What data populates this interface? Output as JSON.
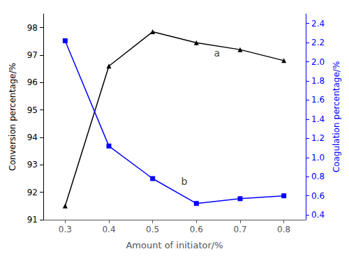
{
  "chart_data": {
    "type": "line",
    "x": [
      0.3,
      0.4,
      0.5,
      0.6,
      0.7,
      0.8
    ],
    "xlabel": "Amount of initiator/%",
    "ylabel": "Conversion percentage/%",
    "y2label": "Coagulation percentage/%",
    "xlim": [
      0.25,
      0.85
    ],
    "xticks": [
      0.3,
      0.4,
      0.5,
      0.6,
      0.7,
      0.8
    ],
    "ylim": [
      91,
      98.5
    ],
    "yticks": [
      91,
      92,
      93,
      94,
      95,
      96,
      97,
      98
    ],
    "y2lim": [
      0.35,
      2.5
    ],
    "y2ticks": [
      0.4,
      0.6,
      0.8,
      {
        "value": 1.0,
        "label": "1.0"
      },
      1.2,
      1.4,
      1.6,
      1.8,
      {
        "value": 2.0,
        "label": "2.0"
      },
      2.2,
      2.4
    ],
    "grid": false,
    "series": [
      {
        "color": "black",
        "marker": "triangle",
        "values": [
          91.5,
          96.6,
          97.85,
          97.45,
          97.2,
          96.8
        ]
      },
      {
        "color": "blue",
        "marker": "square",
        "axis": "y2",
        "values": [
          2.22,
          1.12,
          0.78,
          0.52,
          0.57,
          0.6
        ]
      }
    ],
    "annotations": [
      {
        "text": "a",
        "x": 0.64,
        "y": 96.9
      },
      {
        "text": "b",
        "x": 0.565,
        "y": 0.7,
        "axis": "y2"
      }
    ]
  }
}
